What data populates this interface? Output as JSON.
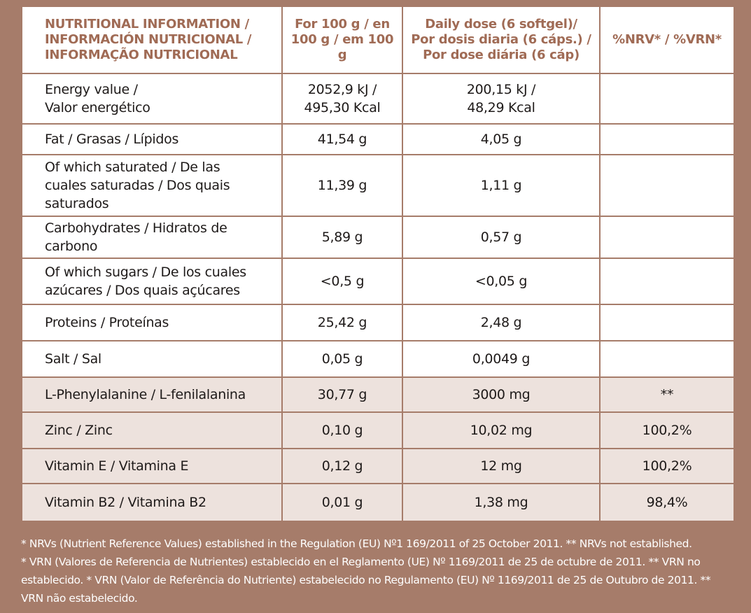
{
  "header": {
    "col1": [
      "NUTRITIONAL INFORMATION /",
      "INFORMACIÓN NUTRICIONAL /",
      "INFORMAÇÃO NUTRICIONAL"
    ],
    "col2": [
      "For 100 g / en",
      "100 g / em 100 g"
    ],
    "col3": [
      "Daily dose (6 softgel)/",
      "Por dosis diaria (6 cáps.) /",
      "Por dose diária (6 cáp)"
    ],
    "col4": "%NRV* / %VRN*"
  },
  "rows": [
    {
      "label": [
        "Energy value /",
        "Valor energético"
      ],
      "per100": [
        "2052,9 kJ /",
        "495,30 Kcal"
      ],
      "daily": [
        "200,15 kJ /",
        "48,29 Kcal"
      ],
      "nrv": ""
    },
    {
      "label": [
        "Fat / Grasas / Lípidos"
      ],
      "per100": [
        "41,54 g"
      ],
      "daily": [
        "4,05 g"
      ],
      "nrv": ""
    },
    {
      "label": [
        "Of which saturated / De las",
        "cuales saturadas / Dos quais",
        "saturados"
      ],
      "per100": [
        "11,39 g"
      ],
      "daily": [
        "1,11 g"
      ],
      "nrv": ""
    },
    {
      "label": [
        "Carbohydrates / Hidratos de",
        "carbono"
      ],
      "per100": [
        "5,89 g"
      ],
      "daily": [
        "0,57 g"
      ],
      "nrv": ""
    },
    {
      "label": [
        "Of which sugars / De los cuales",
        "azúcares  / Dos quais açúcares"
      ],
      "per100": [
        "<0,5 g"
      ],
      "daily": [
        "<0,05 g"
      ],
      "nrv": ""
    },
    {
      "label": [
        "Proteins / Proteínas"
      ],
      "per100": [
        "25,42 g"
      ],
      "daily": [
        "2,48 g"
      ],
      "nrv": ""
    },
    {
      "label": [
        "Salt / Sal"
      ],
      "per100": [
        "0,05 g"
      ],
      "daily": [
        "0,0049 g"
      ],
      "nrv": ""
    },
    {
      "label": [
        "L-Phenylalanine / L-fenilalanina"
      ],
      "per100": [
        "30,77 g"
      ],
      "daily": [
        "3000 mg"
      ],
      "nrv": "**"
    },
    {
      "label": [
        "Zinc / Zinc"
      ],
      "per100": [
        "0,10 g"
      ],
      "daily": [
        "10,02 mg"
      ],
      "nrv": "100,2%"
    },
    {
      "label": [
        "Vitamin E / Vitamina E"
      ],
      "per100": [
        "0,12 g"
      ],
      "daily": [
        "12 mg"
      ],
      "nrv": "100,2%"
    },
    {
      "label": [
        "Vitamin B2 / Vitamina B2"
      ],
      "per100": [
        "0,01 g"
      ],
      "daily": [
        "1,38 mg"
      ],
      "nrv": "98,4%"
    }
  ],
  "footnote": [
    "* NRVs (Nutrient Reference Values) established in the Regulation (EU) Nº1 169/2011 of 25 October 2011. ** NRVs not established.",
    "* VRN (Valores de Referencia de Nutrientes) establecido en el Reglamento (UE) Nº 1169/2011 de 25 de octubre de 2011. ** VRN no",
    "establecido. * VRN (Valor de Referência do Nutriente) estabelecido no Regulamento (EU) Nº 1169/2011 de 25 de Outubro de 2011. **",
    "VRN não estabelecido."
  ],
  "colors": {
    "background": "#a67c6a",
    "header_text": "#a06b55",
    "shaded_row": "#ede2dd",
    "cell": "#ffffff"
  }
}
